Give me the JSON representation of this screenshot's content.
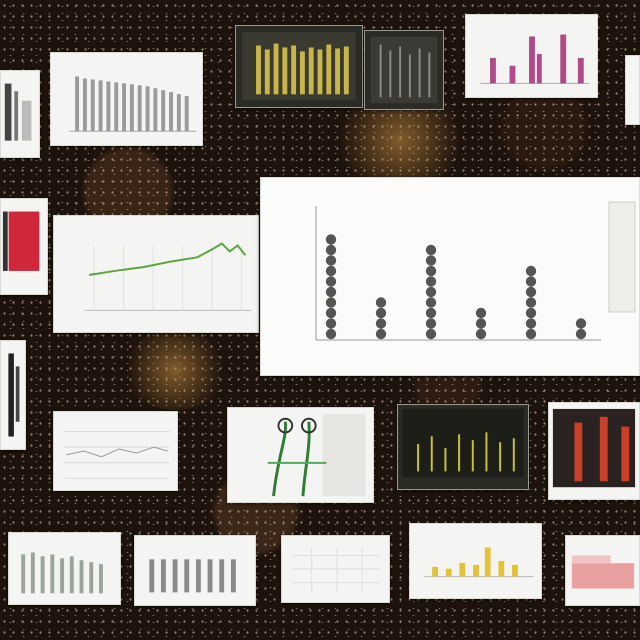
{
  "scene": {
    "description_free": true,
    "colors": {
      "background": "#1e130c",
      "card": "#f4f4f2",
      "gray_bar": "#8d8d8d",
      "green_line": "#5aa63c",
      "yellow_bar": "#e3c23a",
      "red_block": "#d0283a",
      "magenta_bar": "#b04a88",
      "dot": "#555555"
    }
  },
  "chart_data": {
    "type": "scatter",
    "title": "",
    "xlabel": "",
    "ylabel": "",
    "categories": [
      "",
      "",
      "",
      "",
      "",
      ""
    ],
    "values": [
      9,
      4,
      8,
      3,
      6,
      2
    ],
    "ylim": [
      0,
      10
    ],
    "grid": false,
    "marker": "stacked-dots"
  }
}
